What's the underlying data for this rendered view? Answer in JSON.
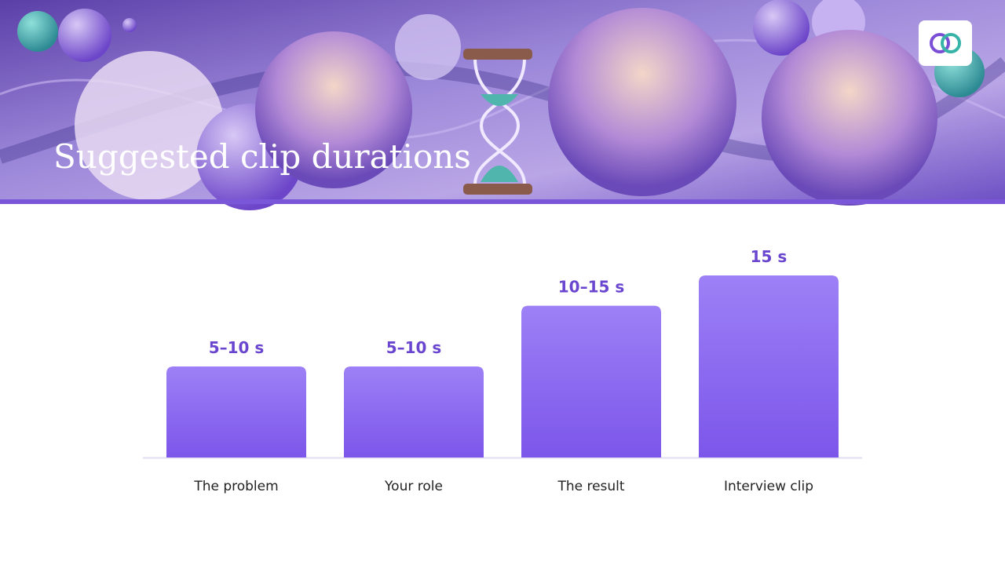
{
  "chart_data": {
    "type": "bar",
    "title": "Suggested clip durations",
    "categories": [
      "The problem",
      "Your role",
      "The result",
      "Interview clip"
    ],
    "values": [
      7.5,
      7.5,
      12.5,
      15
    ],
    "value_labels": [
      "5–10 s",
      "5–10 s",
      "10–15 s",
      "15 s"
    ],
    "color": "#8b66f0"
  }
}
